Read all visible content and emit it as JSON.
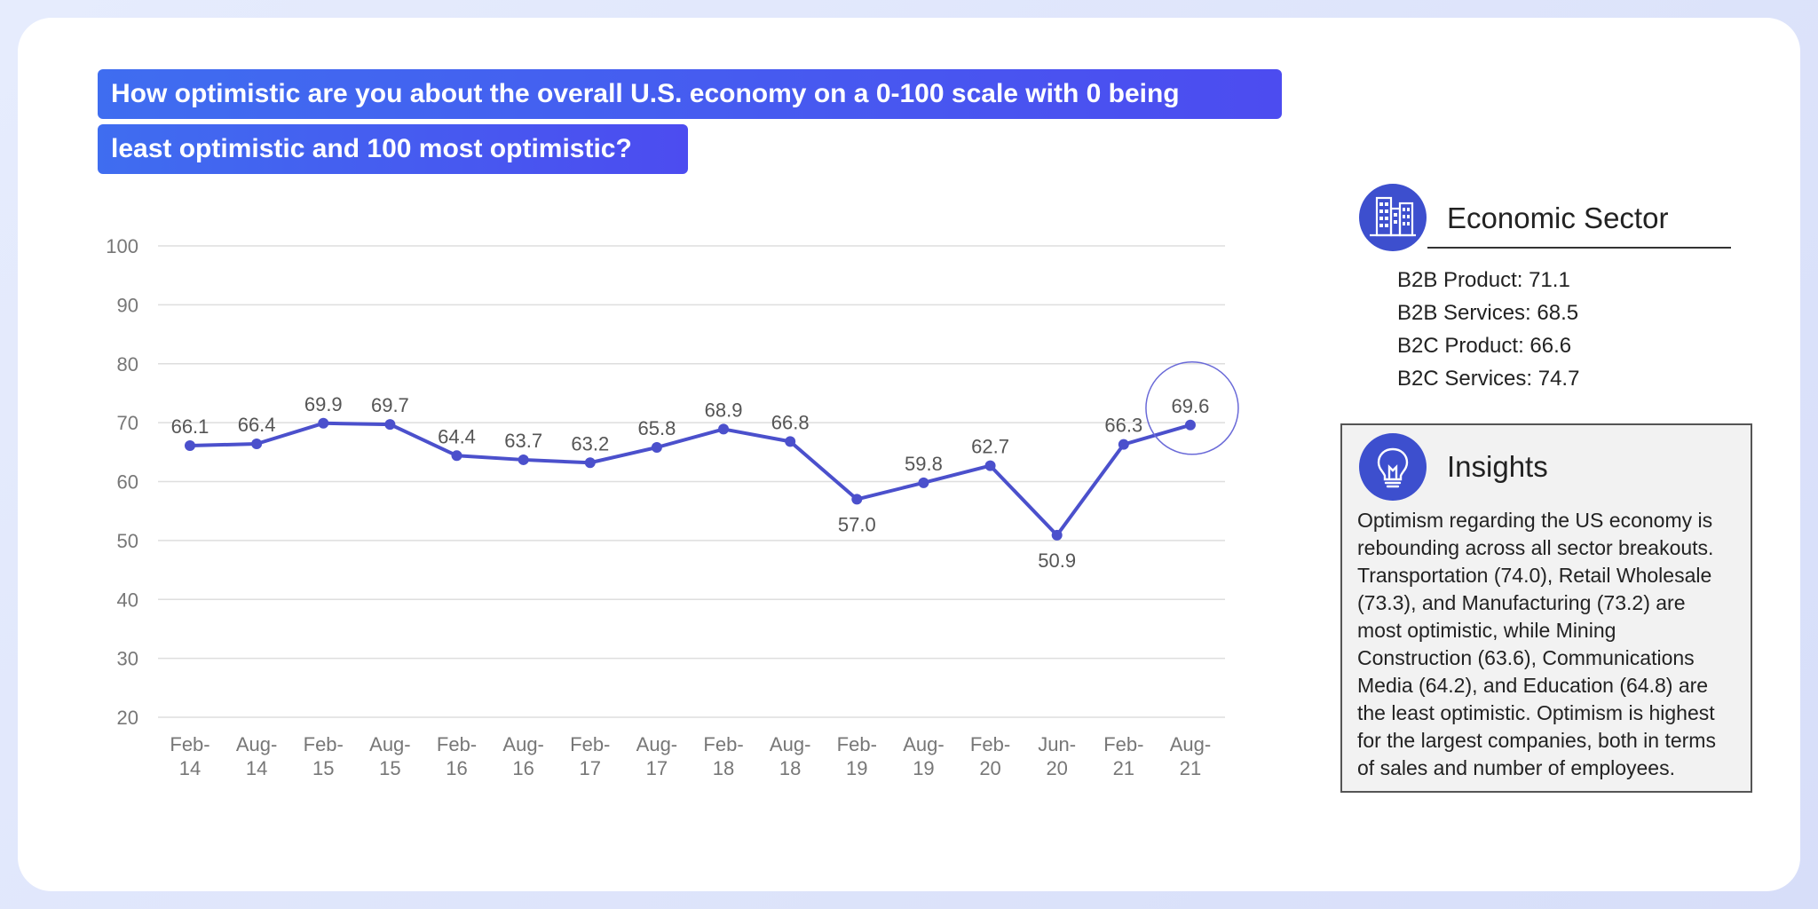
{
  "question": {
    "line1": "How optimistic are you about the overall U.S. economy on a 0-100 scale with 0 being",
    "line2": "least optimistic and 100 most optimistic?"
  },
  "chart_data": {
    "type": "line",
    "categories": [
      "Feb-14",
      "Aug-14",
      "Feb-15",
      "Aug-15",
      "Feb-16",
      "Aug-16",
      "Feb-17",
      "Aug-17",
      "Feb-18",
      "Aug-18",
      "Feb-19",
      "Aug-19",
      "Feb-20",
      "Jun-20",
      "Feb-21",
      "Aug-21"
    ],
    "values": [
      66.1,
      66.4,
      69.9,
      69.7,
      64.4,
      63.7,
      63.2,
      65.8,
      68.9,
      66.8,
      57.0,
      59.8,
      62.7,
      50.9,
      66.3,
      69.6
    ],
    "labels": [
      "66.1",
      "66.4",
      "69.9",
      "69.7",
      "64.4",
      "63.7",
      "63.2",
      "65.8",
      "68.9",
      "66.8",
      "57.0",
      "59.8",
      "62.7",
      "50.9",
      "66.3",
      "69.6"
    ],
    "ylim": [
      20,
      100
    ],
    "yticks": [
      "20",
      "30",
      "40",
      "50",
      "60",
      "70",
      "80",
      "90",
      "100"
    ],
    "grid": true,
    "highlight_index": 15,
    "line_color": "#4b50cc",
    "highlight_color": "#6a6ad8"
  },
  "sector": {
    "title": "Economic Sector",
    "icon": "buildings-icon",
    "items": [
      "B2B Product: 71.1",
      "B2B Services: 68.5",
      "B2C Product: 66.6",
      "B2C Services: 74.7"
    ]
  },
  "insights": {
    "title": "Insights",
    "icon": "lightbulb-icon",
    "lines": [
      "Optimism regarding the US economy is",
      "rebounding across all sector breakouts.",
      "Transportation (74.0), Retail Wholesale",
      "(73.3), and Manufacturing (73.2) are",
      "most optimistic, while Mining",
      "Construction (63.6), Communications",
      "Media (64.2), and Education (64.8) are",
      "the least optimistic. Optimism is highest",
      "for the largest companies, both in terms",
      "of sales and number of employees."
    ]
  },
  "colors": {
    "accent": "#3d4fce",
    "header_gradient_start": "#3f6df0",
    "header_gradient_end": "#4c4cf0"
  }
}
